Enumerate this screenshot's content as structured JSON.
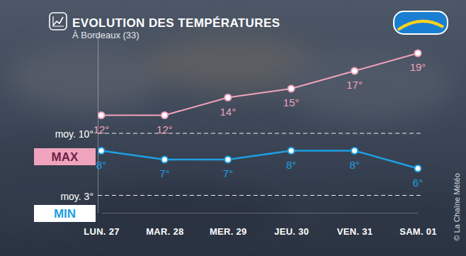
{
  "chart_data": {
    "type": "line",
    "title": "EVOLUTION DES TEMPÉRATURES",
    "subtitle": "À Bordeaux (33)",
    "categories": [
      "LUN. 27",
      "MAR. 28",
      "MER. 29",
      "JEU. 30",
      "VEN. 31",
      "SAM. 01"
    ],
    "series": [
      {
        "name": "MAX",
        "color": "#f0a3bc",
        "values": [
          12,
          12,
          14,
          15,
          17,
          19
        ],
        "value_labels": [
          "12°",
          "12°",
          "14°",
          "15°",
          "17°",
          "19°"
        ]
      },
      {
        "name": "MIN",
        "color": "#1e9fe3",
        "values": [
          8,
          7,
          7,
          8,
          8,
          6
        ],
        "value_labels": [
          "8°",
          "7°",
          "7°",
          "8°",
          "8°",
          "6°"
        ]
      }
    ],
    "ylim": [
      1,
      21
    ],
    "yticks": [
      {
        "value": 10,
        "label": "moy. 10°"
      },
      {
        "value": 3,
        "label": "moy. 3°"
      }
    ],
    "grid": true,
    "data_labels": true,
    "marker": "circle",
    "legend": "left",
    "annotations": [
      "© La Chaîne Météo"
    ]
  }
}
